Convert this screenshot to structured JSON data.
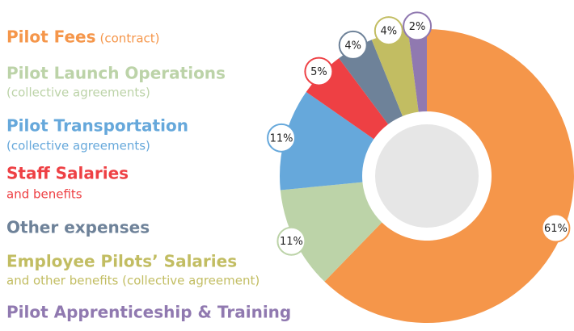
{
  "chart_data": {
    "type": "donut",
    "categories": [
      "Pilot Fees",
      "Pilot Launch Operations",
      "Pilot Transportation",
      "Staff Salaries",
      "Other expenses",
      "Employee Pilots’ Salaries",
      "Pilot Apprenticeship & Training"
    ],
    "notes": [
      "(contract)",
      "(collective agreements)",
      "(collective agreements)",
      "and benefits",
      null,
      "and other benefits (collective agreement)",
      null
    ],
    "values": [
      61,
      11,
      11,
      5,
      4,
      4,
      2
    ],
    "value_labels": [
      "61%",
      "11%",
      "11%",
      "5%",
      "4%",
      "4%",
      "2%"
    ],
    "colors": [
      "#f5964a",
      "#bcd3a8",
      "#66a8db",
      "#ee4044",
      "#6e8299",
      "#c2bd62",
      "#9079b0"
    ]
  }
}
